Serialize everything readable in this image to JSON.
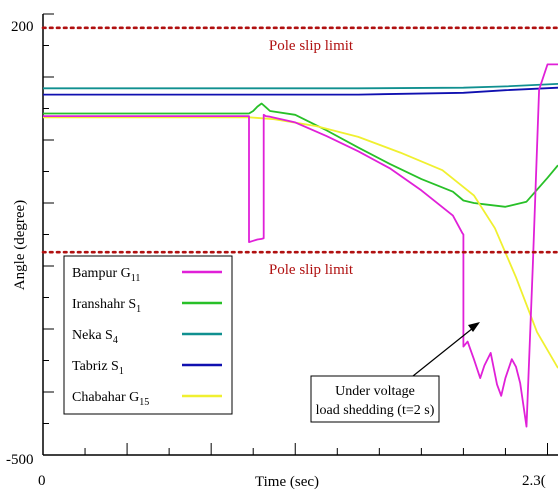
{
  "chart_data": {
    "type": "line",
    "xlabel": "Time (sec)",
    "ylabel": "Angle (degree)",
    "x_ticklabels": [
      {
        "x": 0,
        "label": "0"
      },
      {
        "x": 2.3,
        "label": "2.3("
      }
    ],
    "y_ticklabels": [
      {
        "y": 200,
        "label": "200"
      },
      {
        "y": -500,
        "label": "-500"
      }
    ],
    "xlim": [
      0,
      2.45
    ],
    "ylim": [
      -500,
      200
    ],
    "grid": false,
    "legend_position": "lower-left",
    "reference_lines": [
      {
        "y": 178,
        "label": "Pole slip limit",
        "color": "#b01010"
      },
      {
        "y": -178,
        "label": "Pole slip limit",
        "color": "#b01010"
      }
    ],
    "annotation": {
      "lines": [
        "Under voltage",
        "load shedding (t=2 s)"
      ],
      "arrow_to": {
        "x": 2.0,
        "y": -162
      }
    },
    "series": [
      {
        "name": "Bampur",
        "sub": "G",
        "idx": "11",
        "color": "#e020d8",
        "x": [
          0,
          0.98,
          0.98,
          1.0,
          1.02,
          1.04,
          1.05,
          1.05,
          1.06,
          1.08,
          1.2,
          1.35,
          1.5,
          1.65,
          1.8,
          1.95,
          1.995,
          2.0,
          2.0,
          2.02,
          2.05,
          2.08,
          2.1,
          2.13,
          2.16,
          2.18,
          2.2,
          2.23,
          2.25,
          2.27,
          2.3,
          2.33,
          2.36,
          2.4,
          2.45
        ],
        "y": [
          38,
          38,
          -162,
          -160,
          -158,
          -157,
          -156,
          40,
          38,
          37,
          28,
          6,
          -18,
          -45,
          -80,
          -120,
          -148,
          -150,
          -328,
          -320,
          -348,
          -378,
          -358,
          -338,
          -388,
          -406,
          -378,
          -348,
          -360,
          -386,
          -455,
          -200,
          80,
          120,
          120
        ]
      },
      {
        "name": "Iranshahr",
        "sub": "S",
        "idx": "1",
        "color": "#28c028",
        "x": [
          0,
          0.98,
          1.0,
          1.02,
          1.04,
          1.06,
          1.08,
          1.2,
          1.35,
          1.5,
          1.65,
          1.8,
          1.95,
          2.0,
          2.05,
          2.1,
          2.2,
          2.3,
          2.4,
          2.45
        ],
        "y": [
          42,
          42,
          46,
          53,
          58,
          52,
          46,
          40,
          15,
          -12,
          -38,
          -62,
          -82,
          -96,
          -100,
          -102,
          -106,
          -98,
          -60,
          -40
        ]
      },
      {
        "name": "Neka",
        "sub": "S",
        "idx": "4",
        "color": "#109090",
        "x": [
          0,
          1.5,
          2.0,
          2.2,
          2.45
        ],
        "y": [
          82,
          82,
          83,
          85,
          89
        ]
      },
      {
        "name": "Tabriz",
        "sub": "S",
        "idx": "1",
        "color": "#1010b0",
        "x": [
          0,
          1.5,
          2.0,
          2.2,
          2.45
        ],
        "y": [
          72,
          72,
          75,
          79,
          83
        ]
      },
      {
        "name": "Chabahar",
        "sub": "G",
        "idx": "15",
        "color": "#f0f030",
        "x": [
          0,
          0.98,
          1.1,
          1.3,
          1.5,
          1.7,
          1.9,
          2.05,
          2.15,
          2.25,
          2.35,
          2.45
        ],
        "y": [
          36,
          36,
          33,
          22,
          5,
          -20,
          -48,
          -88,
          -140,
          -218,
          -305,
          -362
        ]
      }
    ]
  }
}
